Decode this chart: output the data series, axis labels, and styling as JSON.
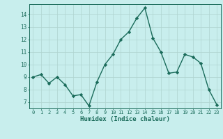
{
  "x": [
    0,
    1,
    2,
    3,
    4,
    5,
    6,
    7,
    8,
    9,
    10,
    11,
    12,
    13,
    14,
    15,
    16,
    17,
    18,
    19,
    20,
    21,
    22,
    23
  ],
  "y": [
    9.0,
    9.2,
    8.5,
    9.0,
    8.4,
    7.5,
    7.6,
    6.7,
    8.6,
    10.0,
    10.8,
    12.0,
    12.6,
    13.7,
    14.5,
    12.1,
    11.0,
    9.3,
    9.4,
    10.8,
    10.6,
    10.1,
    8.0,
    6.8
  ],
  "line_color": "#1a6b5a",
  "marker": "D",
  "markersize": 2.2,
  "linewidth": 1.0,
  "bg_color": "#c8eeed",
  "grid_color": "#afd4d0",
  "xlabel": "Humidex (Indice chaleur)",
  "xlabel_fontsize": 6.5,
  "tick_color": "#1a6b5a",
  "axis_label_color": "#1a6b5a",
  "xlim": [
    -0.5,
    23.5
  ],
  "ylim": [
    6.5,
    14.8
  ],
  "yticks": [
    7,
    8,
    9,
    10,
    11,
    12,
    13,
    14
  ],
  "xticks": [
    0,
    1,
    2,
    3,
    4,
    5,
    6,
    7,
    8,
    9,
    10,
    11,
    12,
    13,
    14,
    15,
    16,
    17,
    18,
    19,
    20,
    21,
    22,
    23
  ]
}
